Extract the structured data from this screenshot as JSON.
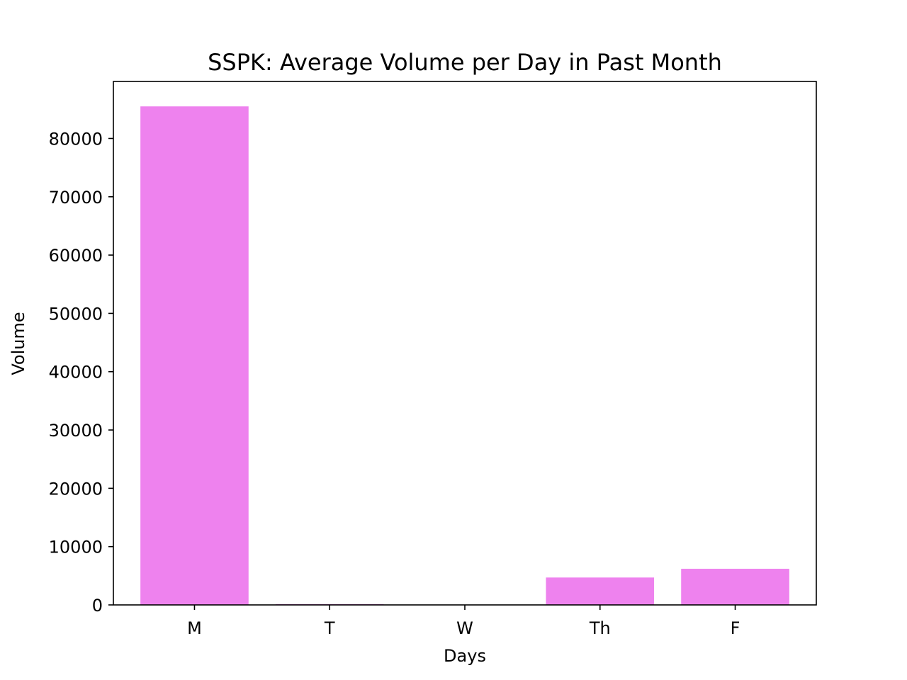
{
  "chart_data": {
    "type": "bar",
    "title": "SSPK: Average Volume per Day in Past Month",
    "xlabel": "Days",
    "ylabel": "Volume",
    "categories": [
      "M",
      "T",
      "W",
      "Th",
      "F"
    ],
    "values": [
      85500,
      150,
      30,
      4700,
      6200
    ],
    "yticks": [
      0,
      10000,
      20000,
      30000,
      40000,
      50000,
      60000,
      70000,
      80000
    ],
    "ylim": [
      0,
      89775
    ],
    "grid": false,
    "legend": "none",
    "bar_color": "#ee82ee"
  }
}
